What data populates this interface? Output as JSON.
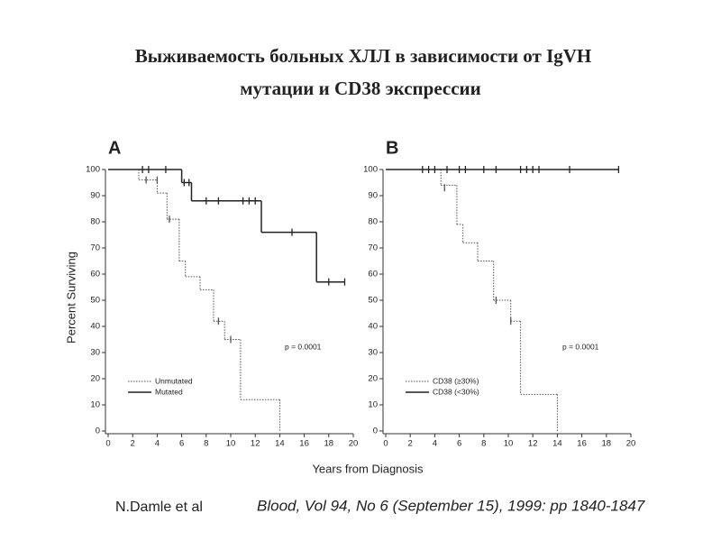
{
  "title": [
    "Выживаемость больных ХЛЛ в зависимости от IgVH",
    "мутации и CD38 экспрессии"
  ],
  "x_label": "Years from Diagnosis",
  "footer": {
    "authors": "N.Damle et al",
    "citation": "Blood, Vol 94, No 6 (September 15), 1999: pp 1840-1847"
  },
  "chart_data": [
    {
      "type": "step",
      "panel": "A",
      "y_label": "Percent Surviving",
      "annotation": "p = 0.0001",
      "xlim": [
        0,
        20
      ],
      "xticks": [
        0,
        2,
        4,
        6,
        8,
        10,
        12,
        14,
        16,
        18,
        20
      ],
      "ylim": [
        0,
        100
      ],
      "yticks": [
        0,
        10,
        20,
        30,
        40,
        50,
        60,
        70,
        80,
        90,
        100
      ],
      "series": [
        {
          "name": "Unmutated",
          "color": "#555555",
          "dash": "dotted",
          "x": [
            0,
            2.5,
            4,
            4.8,
            5.8,
            6.3,
            7.5,
            8.6,
            9.5,
            10.8,
            14
          ],
          "values": [
            100,
            96,
            91,
            81,
            65,
            59,
            54,
            42,
            35,
            12,
            0
          ],
          "censor_x": [
            3.1,
            4,
            5,
            9,
            10
          ],
          "censor_y": [
            96,
            96,
            81,
            42,
            35
          ]
        },
        {
          "name": "Mutated",
          "color": "#222222",
          "dash": "solid",
          "x": [
            0,
            6,
            6.8,
            12.5,
            17,
            19.3
          ],
          "values": [
            100,
            95,
            88,
            76,
            57,
            57
          ],
          "censor_x": [
            2.8,
            3.3,
            4.7,
            6.2,
            6.6,
            8,
            9,
            11,
            11.5,
            12,
            15,
            18,
            19.3
          ],
          "censor_y": [
            100,
            100,
            100,
            95,
            95,
            88,
            88,
            88,
            88,
            88,
            76,
            57,
            57
          ]
        }
      ]
    },
    {
      "type": "step",
      "panel": "B",
      "annotation": "p = 0.0001",
      "xlim": [
        0,
        20
      ],
      "xticks": [
        0,
        2,
        4,
        6,
        8,
        10,
        12,
        14,
        16,
        18,
        20
      ],
      "ylim": [
        0,
        100
      ],
      "yticks": [
        0,
        10,
        20,
        30,
        40,
        50,
        60,
        70,
        80,
        90,
        100
      ],
      "series": [
        {
          "name": "CD38 (≥30%)",
          "color": "#555555",
          "dash": "dotted",
          "x": [
            0,
            4.5,
            5.8,
            6.3,
            7.5,
            8.8,
            10.2,
            11,
            14
          ],
          "values": [
            100,
            94,
            79,
            72,
            65,
            50,
            42,
            14,
            0
          ],
          "censor_x": [
            4.8,
            9,
            10.2
          ],
          "censor_y": [
            93,
            50,
            42
          ]
        },
        {
          "name": "CD38 (<30%)",
          "color": "#222222",
          "dash": "solid",
          "x": [
            0,
            19
          ],
          "values": [
            100,
            100
          ],
          "censor_x": [
            3,
            3.5,
            4,
            5,
            6,
            6.5,
            8,
            9,
            11,
            11.5,
            12,
            12.5,
            15,
            19
          ],
          "censor_y": [
            100,
            100,
            100,
            100,
            100,
            100,
            100,
            100,
            100,
            100,
            100,
            100,
            100,
            100
          ]
        }
      ]
    }
  ]
}
